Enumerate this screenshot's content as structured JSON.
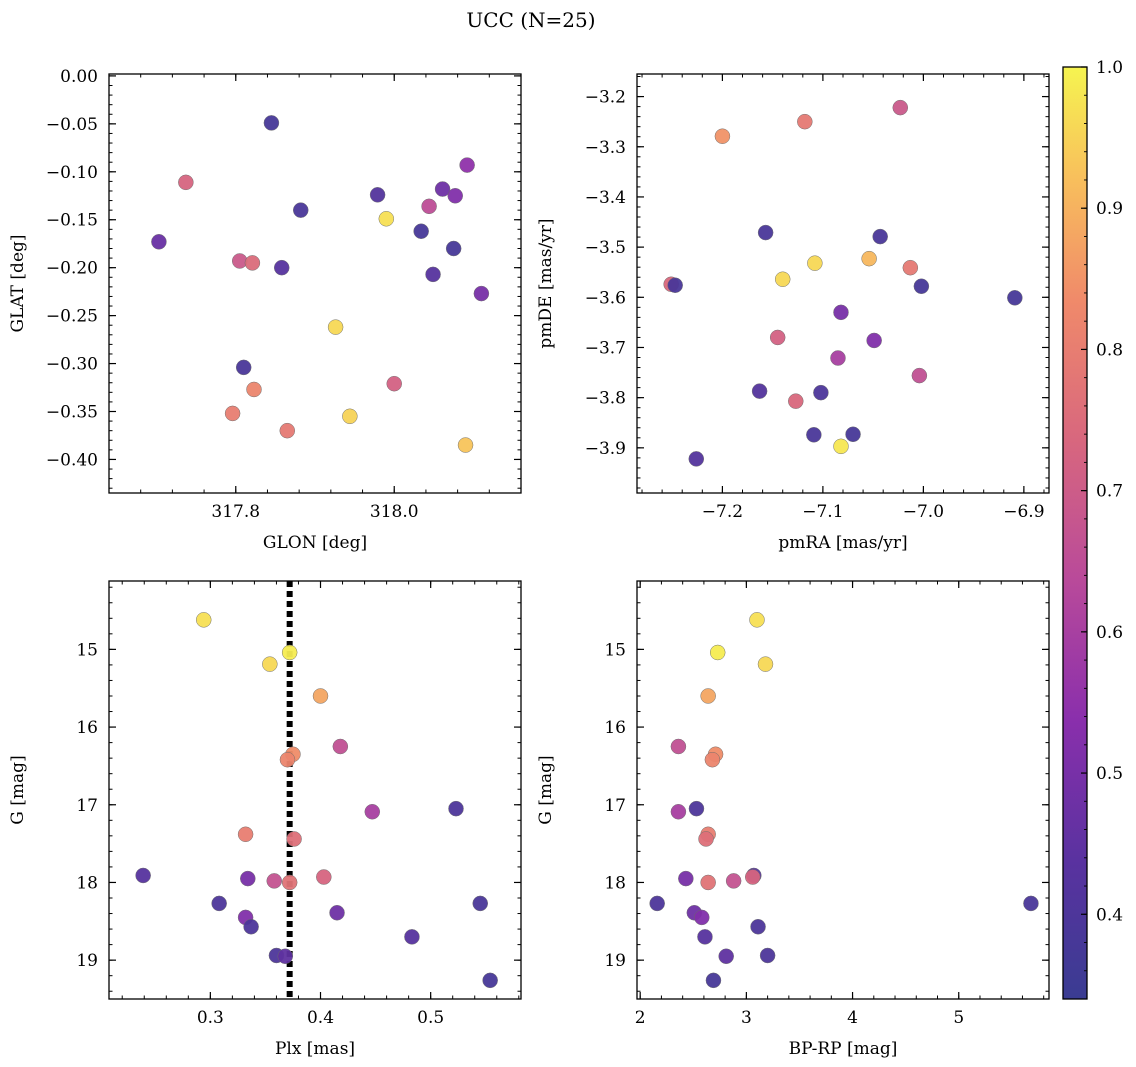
{
  "title": "UCC (N=25)",
  "colorbar": {
    "min": 0.34,
    "max": 1.0,
    "ticks": [
      "0.4",
      "0.5",
      "0.6",
      "0.7",
      "0.8",
      "0.9",
      "1.0"
    ],
    "colormap": "plasma"
  },
  "chart_data": [
    {
      "type": "scatter",
      "xlabel": "GLON [deg]",
      "ylabel": "GLAT [deg]",
      "xlim": [
        317.64,
        318.16
      ],
      "ylim": [
        -0.435,
        0.002
      ],
      "y_inverted": false,
      "xticks": [
        "317.8",
        "318.0"
      ],
      "yticks": [
        "0.00",
        "-0.05",
        "-0.10",
        "-0.15",
        "-0.20",
        "-0.25",
        "-0.30",
        "-0.35",
        "-0.40"
      ],
      "points": [
        {
          "x": 317.845,
          "y": -0.049,
          "c": 0.38
        },
        {
          "x": 317.737,
          "y": -0.111,
          "c": 0.73
        },
        {
          "x": 317.703,
          "y": -0.173,
          "c": 0.47
        },
        {
          "x": 317.805,
          "y": -0.193,
          "c": 0.69
        },
        {
          "x": 317.821,
          "y": -0.195,
          "c": 0.75
        },
        {
          "x": 317.858,
          "y": -0.2,
          "c": 0.43
        },
        {
          "x": 317.882,
          "y": -0.14,
          "c": 0.39
        },
        {
          "x": 317.979,
          "y": -0.124,
          "c": 0.42
        },
        {
          "x": 317.99,
          "y": -0.149,
          "c": 0.97
        },
        {
          "x": 318.034,
          "y": -0.162,
          "c": 0.38
        },
        {
          "x": 318.044,
          "y": -0.136,
          "c": 0.65
        },
        {
          "x": 318.061,
          "y": -0.118,
          "c": 0.48
        },
        {
          "x": 318.077,
          "y": -0.125,
          "c": 0.52
        },
        {
          "x": 318.092,
          "y": -0.093,
          "c": 0.55
        },
        {
          "x": 318.075,
          "y": -0.18,
          "c": 0.38
        },
        {
          "x": 318.049,
          "y": -0.207,
          "c": 0.43
        },
        {
          "x": 318.11,
          "y": -0.227,
          "c": 0.5
        },
        {
          "x": 317.926,
          "y": -0.262,
          "c": 0.96
        },
        {
          "x": 317.81,
          "y": -0.304,
          "c": 0.39
        },
        {
          "x": 317.823,
          "y": -0.327,
          "c": 0.82
        },
        {
          "x": 317.796,
          "y": -0.352,
          "c": 0.8
        },
        {
          "x": 318.0,
          "y": -0.321,
          "c": 0.72
        },
        {
          "x": 317.944,
          "y": -0.355,
          "c": 0.95
        },
        {
          "x": 317.865,
          "y": -0.37,
          "c": 0.79
        },
        {
          "x": 318.09,
          "y": -0.385,
          "c": 0.93
        }
      ]
    },
    {
      "type": "scatter",
      "xlabel": "pmRA [mas/yr]",
      "ylabel": "pmDE [mas/yr]",
      "xlim": [
        -7.285,
        -6.875
      ],
      "ylim": [
        -3.99,
        -3.155
      ],
      "y_inverted": false,
      "xticks": [
        "-7.2",
        "-7.1",
        "-7.0",
        "-6.9"
      ],
      "yticks": [
        "-3.2",
        "-3.3",
        "-3.4",
        "-3.5",
        "-3.6",
        "-3.7",
        "-3.8",
        "-3.9"
      ],
      "points": [
        {
          "x": -7.023,
          "y": -3.222,
          "c": 0.69
        },
        {
          "x": -7.118,
          "y": -3.25,
          "c": 0.79
        },
        {
          "x": -7.2,
          "y": -3.279,
          "c": 0.85
        },
        {
          "x": -7.157,
          "y": -3.471,
          "c": 0.39
        },
        {
          "x": -7.043,
          "y": -3.479,
          "c": 0.39
        },
        {
          "x": -7.108,
          "y": -3.532,
          "c": 0.96
        },
        {
          "x": -7.054,
          "y": -3.523,
          "c": 0.91
        },
        {
          "x": -7.013,
          "y": -3.541,
          "c": 0.79
        },
        {
          "x": -7.14,
          "y": -3.564,
          "c": 0.96
        },
        {
          "x": -7.251,
          "y": -3.574,
          "c": 0.74
        },
        {
          "x": -7.247,
          "y": -3.576,
          "c": 0.39
        },
        {
          "x": -7.002,
          "y": -3.578,
          "c": 0.38
        },
        {
          "x": -6.909,
          "y": -3.601,
          "c": 0.38
        },
        {
          "x": -7.082,
          "y": -3.63,
          "c": 0.5
        },
        {
          "x": -7.145,
          "y": -3.68,
          "c": 0.72
        },
        {
          "x": -7.049,
          "y": -3.686,
          "c": 0.52
        },
        {
          "x": -7.085,
          "y": -3.721,
          "c": 0.6
        },
        {
          "x": -7.004,
          "y": -3.756,
          "c": 0.66
        },
        {
          "x": -7.163,
          "y": -3.787,
          "c": 0.42
        },
        {
          "x": -7.102,
          "y": -3.79,
          "c": 0.4
        },
        {
          "x": -7.127,
          "y": -3.807,
          "c": 0.74
        },
        {
          "x": -7.109,
          "y": -3.874,
          "c": 0.39
        },
        {
          "x": -7.07,
          "y": -3.873,
          "c": 0.38
        },
        {
          "x": -7.082,
          "y": -3.897,
          "c": 0.98
        },
        {
          "x": -7.226,
          "y": -3.922,
          "c": 0.42
        }
      ]
    },
    {
      "type": "scatter",
      "xlabel": "Plx [mas]",
      "ylabel": "G [mag]",
      "xlim": [
        0.208,
        0.582
      ],
      "ylim": [
        19.5,
        14.12
      ],
      "y_inverted": true,
      "xticks": [
        "0.3",
        "0.4",
        "0.5"
      ],
      "yticks": [
        "15",
        "16",
        "17",
        "18",
        "19"
      ],
      "reference_line": {
        "x": 0.372,
        "style": "dotted"
      },
      "points": [
        {
          "x": 0.294,
          "y": 14.62,
          "c": 0.97
        },
        {
          "x": 0.354,
          "y": 15.19,
          "c": 0.96
        },
        {
          "x": 0.372,
          "y": 15.04,
          "c": 0.99
        },
        {
          "x": 0.4,
          "y": 15.6,
          "c": 0.88
        },
        {
          "x": 0.375,
          "y": 16.35,
          "c": 0.84
        },
        {
          "x": 0.37,
          "y": 16.42,
          "c": 0.82
        },
        {
          "x": 0.418,
          "y": 16.25,
          "c": 0.66
        },
        {
          "x": 0.447,
          "y": 17.09,
          "c": 0.6
        },
        {
          "x": 0.523,
          "y": 17.05,
          "c": 0.4
        },
        {
          "x": 0.332,
          "y": 17.38,
          "c": 0.8
        },
        {
          "x": 0.376,
          "y": 17.44,
          "c": 0.76
        },
        {
          "x": 0.239,
          "y": 17.91,
          "c": 0.43
        },
        {
          "x": 0.334,
          "y": 17.95,
          "c": 0.5
        },
        {
          "x": 0.358,
          "y": 17.98,
          "c": 0.67
        },
        {
          "x": 0.372,
          "y": 18.0,
          "c": 0.77
        },
        {
          "x": 0.403,
          "y": 17.93,
          "c": 0.73
        },
        {
          "x": 0.308,
          "y": 18.27,
          "c": 0.4
        },
        {
          "x": 0.415,
          "y": 18.39,
          "c": 0.48
        },
        {
          "x": 0.545,
          "y": 18.27,
          "c": 0.39
        },
        {
          "x": 0.332,
          "y": 18.45,
          "c": 0.52
        },
        {
          "x": 0.337,
          "y": 18.57,
          "c": 0.4
        },
        {
          "x": 0.483,
          "y": 18.7,
          "c": 0.43
        },
        {
          "x": 0.36,
          "y": 18.94,
          "c": 0.4
        },
        {
          "x": 0.368,
          "y": 18.95,
          "c": 0.45
        },
        {
          "x": 0.554,
          "y": 19.26,
          "c": 0.38
        }
      ]
    },
    {
      "type": "scatter",
      "xlabel": "BP-RP [mag]",
      "ylabel": "G [mag]",
      "xlim": [
        1.97,
        5.85
      ],
      "ylim": [
        19.5,
        14.12
      ],
      "y_inverted": true,
      "xticks": [
        "2",
        "3",
        "4",
        "5"
      ],
      "yticks": [
        "15",
        "16",
        "17",
        "18",
        "19"
      ],
      "points": [
        {
          "x": 3.1,
          "y": 14.62,
          "c": 0.97
        },
        {
          "x": 3.18,
          "y": 15.19,
          "c": 0.96
        },
        {
          "x": 2.73,
          "y": 15.04,
          "c": 0.99
        },
        {
          "x": 2.64,
          "y": 15.6,
          "c": 0.88
        },
        {
          "x": 2.71,
          "y": 16.35,
          "c": 0.84
        },
        {
          "x": 2.68,
          "y": 16.42,
          "c": 0.82
        },
        {
          "x": 2.36,
          "y": 16.25,
          "c": 0.66
        },
        {
          "x": 2.36,
          "y": 17.09,
          "c": 0.6
        },
        {
          "x": 2.53,
          "y": 17.05,
          "c": 0.4
        },
        {
          "x": 2.64,
          "y": 17.38,
          "c": 0.8
        },
        {
          "x": 2.62,
          "y": 17.44,
          "c": 0.76
        },
        {
          "x": 3.07,
          "y": 17.91,
          "c": 0.43
        },
        {
          "x": 2.43,
          "y": 17.95,
          "c": 0.5
        },
        {
          "x": 2.88,
          "y": 17.98,
          "c": 0.67
        },
        {
          "x": 2.64,
          "y": 18.0,
          "c": 0.77
        },
        {
          "x": 3.06,
          "y": 17.93,
          "c": 0.73
        },
        {
          "x": 2.16,
          "y": 18.27,
          "c": 0.4
        },
        {
          "x": 2.51,
          "y": 18.39,
          "c": 0.48
        },
        {
          "x": 5.68,
          "y": 18.27,
          "c": 0.39
        },
        {
          "x": 2.58,
          "y": 18.45,
          "c": 0.52
        },
        {
          "x": 3.11,
          "y": 18.57,
          "c": 0.4
        },
        {
          "x": 2.61,
          "y": 18.7,
          "c": 0.43
        },
        {
          "x": 3.2,
          "y": 18.94,
          "c": 0.4
        },
        {
          "x": 2.81,
          "y": 18.95,
          "c": 0.45
        },
        {
          "x": 2.69,
          "y": 19.26,
          "c": 0.38
        }
      ]
    }
  ]
}
